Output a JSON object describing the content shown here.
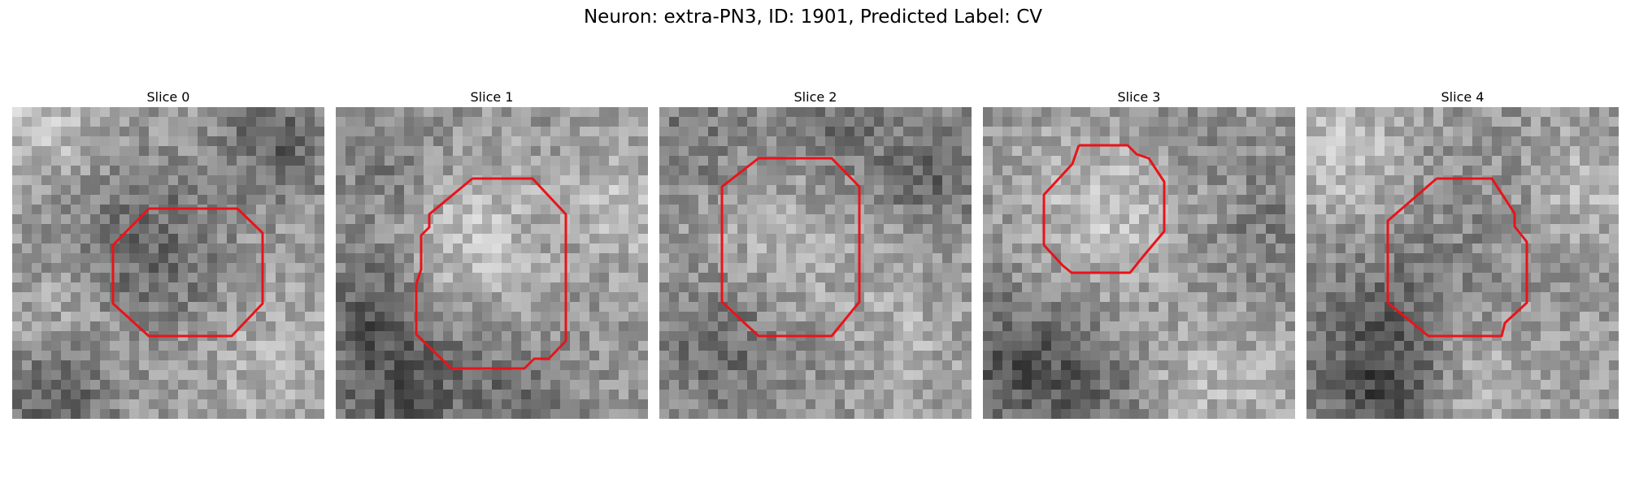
{
  "figure": {
    "title": "Neuron: extra-PN3, ID: 1901, Predicted Label: CV"
  },
  "panels": [
    {
      "title": "Slice 0"
    },
    {
      "title": "Slice 1"
    },
    {
      "title": "Slice 2"
    },
    {
      "title": "Slice 3"
    },
    {
      "title": "Slice 4"
    }
  ],
  "colors": {
    "background": "#ffffff",
    "contour": "#e8141a",
    "image_colormap": "grayscale"
  }
}
